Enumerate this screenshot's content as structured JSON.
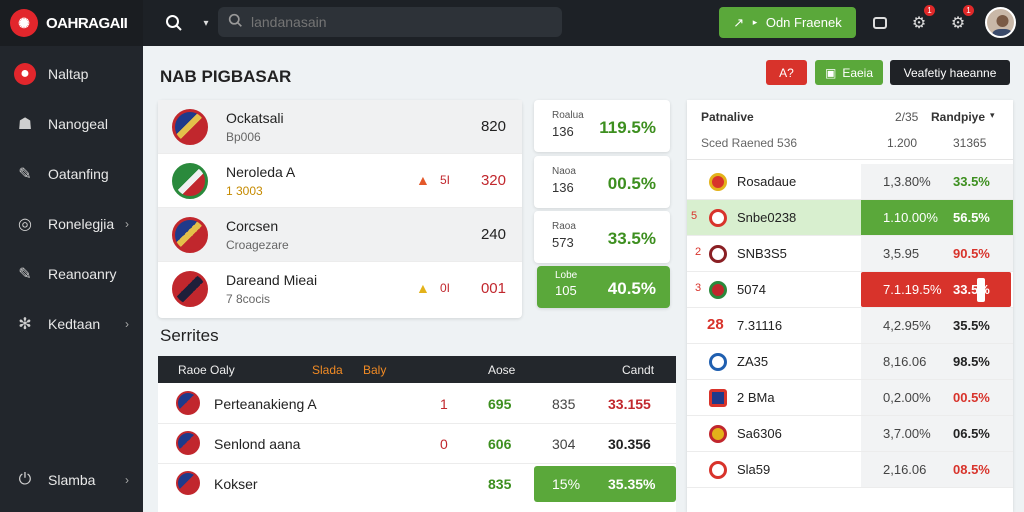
{
  "brand": {
    "name": "OAHRAGAII"
  },
  "search": {
    "placeholder": "landanasain"
  },
  "header": {
    "cta_label": "Odn Fraenek",
    "notif_count_1": "1",
    "notif_count_2": "1"
  },
  "sidebar": {
    "items": [
      {
        "label": "Naltap"
      },
      {
        "label": "Nanogeal"
      },
      {
        "label": "Oatanfing"
      },
      {
        "label": "Ronelegjia"
      },
      {
        "label": "Reanoanry"
      },
      {
        "label": "Kedtaan"
      }
    ],
    "footer": {
      "label": "Slamba"
    }
  },
  "page": {
    "title": "NAB PIGBASAR",
    "actions": {
      "a1": "A?",
      "a2": "Eaeia",
      "a3": "Veafetiy haeanne"
    }
  },
  "matches": [
    {
      "name": "Ockatsali",
      "sub": "Bp006",
      "mid": "",
      "mid2": "",
      "value": "820"
    },
    {
      "name": "Neroleda A",
      "sub": "1 3003",
      "mid": "",
      "mid2": "5I",
      "value": "320"
    },
    {
      "name": "Corcsen",
      "sub": "Croagezare",
      "mid": "",
      "mid2": "",
      "value": "240"
    },
    {
      "name": "Dareand Mieai",
      "sub": "7 8cocis",
      "mid": "",
      "mid2": "0I",
      "value": "001"
    }
  ],
  "odds": [
    {
      "l1": "Roalua",
      "l2": "136",
      "pct": "119.5%"
    },
    {
      "l1": "Naoa",
      "l2": "136",
      "pct": "00.5%"
    },
    {
      "l1": "Raoa",
      "l2": "573",
      "pct": "33.5%"
    },
    {
      "l1": "Lobe",
      "l2": "105",
      "pct": "40.5%"
    }
  ],
  "series": {
    "title": "Serrites",
    "head": {
      "c1": "Raoe Oaly",
      "c2": "Slada",
      "c3": "Baly",
      "c4": "Aose",
      "c5": "Candt"
    },
    "rows": [
      {
        "name": "Perteanakieng A",
        "a": "1",
        "b": "695",
        "c": "835",
        "d": "33.155"
      },
      {
        "name": "Senlond aana",
        "a": "0",
        "b": "606",
        "c": "304",
        "d": "30.356"
      },
      {
        "name": "Kokser",
        "a": "",
        "b": "835",
        "c": "15%",
        "d": "35.35%"
      }
    ]
  },
  "ranking": {
    "head": {
      "title": "Patnalive",
      "sub": "Sced Raened 536",
      "c1": "2/35",
      "c1b": "1.200",
      "c2": "Randpiye",
      "c2b": "31365"
    },
    "rows": [
      {
        "n": "",
        "name": "Rosadaue",
        "v1": "1,3.80%",
        "v2": "33.5%"
      },
      {
        "n": "5",
        "name": "Snbe0238",
        "v1": "1.10.00%",
        "v2": "56.5%"
      },
      {
        "n": "2",
        "name": "SNB3S5",
        "v1": "3,5.95",
        "v2": "90.5%"
      },
      {
        "n": "3",
        "name": "5074",
        "v1": "7.1.19.5%",
        "v2": "33.5%"
      },
      {
        "n": "28",
        "name": "7.31116",
        "v1": "4,2.95%",
        "v2": "35.5%"
      },
      {
        "n": "",
        "name": "ZA35",
        "v1": "8,16.06",
        "v2": "98.5%"
      },
      {
        "n": "",
        "name": "2 BMa",
        "v1": "0,2.00%",
        "v2": "00.5%"
      },
      {
        "n": "",
        "name": "Sa6306",
        "v1": "3,7.00%",
        "v2": "06.5%"
      },
      {
        "n": "",
        "name": "Sla59",
        "v1": "2,16.06",
        "v2": "08.5%"
      }
    ]
  }
}
